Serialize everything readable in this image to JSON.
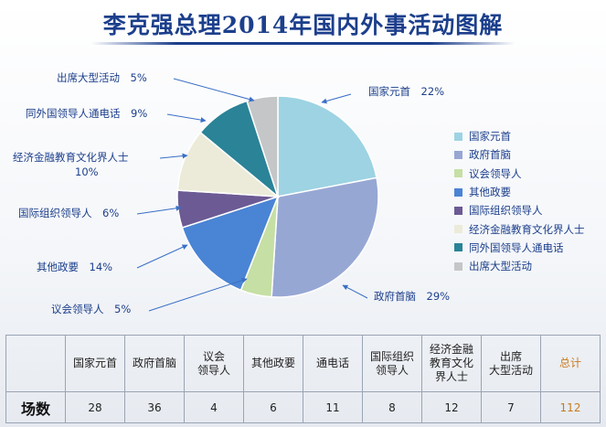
{
  "title": "李克强总理2014年国内外事活动图解",
  "colors": {
    "title": "#1c3f8c",
    "label_text": "#1c3f8c",
    "total_text": "#c97a1e"
  },
  "chart_data": {
    "type": "pie",
    "title": "李克强总理2014年国内外事活动图解",
    "legend_position": "right",
    "slices": [
      {
        "name": "国家元首",
        "value": 22,
        "label": "国家元首　22%",
        "color": "#9dd3e3"
      },
      {
        "name": "政府首脑",
        "value": 29,
        "label": "政府首脑　29%",
        "color": "#97a7d4"
      },
      {
        "name": "议会领导人",
        "value": 5,
        "label": "议会领导人　5%",
        "color": "#c6dfa4"
      },
      {
        "name": "其他政要",
        "value": 14,
        "label": "其他政要　14%",
        "color": "#4a84d4"
      },
      {
        "name": "国际组织领导人",
        "value": 6,
        "label": "国际组织领导人　6%",
        "color": "#6c5a94"
      },
      {
        "name": "经济金融教育文化界人士",
        "value": 10,
        "label": "经济金融教育文化界人士",
        "label2": "10%",
        "color": "#ecebd9"
      },
      {
        "name": "同外国领导人通电话",
        "value": 9,
        "label": "同外国领导人通电话　9%",
        "color": "#2a8397"
      },
      {
        "name": "出席大型活动",
        "value": 5,
        "label": "出席大型活动　5%",
        "color": "#c5c6c8"
      }
    ]
  },
  "legend": [
    "国家元首",
    "政府首脑",
    "议会领导人",
    "其他政要",
    "国际组织领导人",
    "经济金融教育文化界人士",
    "同外国领导人通电话",
    "出席大型活动"
  ],
  "table": {
    "row_label": "场数",
    "headers": [
      [
        "国家元首"
      ],
      [
        "政府首脑"
      ],
      [
        "议会",
        "领导人"
      ],
      [
        "其他政要"
      ],
      [
        "通电话"
      ],
      [
        "国际组织",
        "领导人"
      ],
      [
        "经济金融",
        "教育文化",
        "界人士"
      ],
      [
        "出席",
        "大型活动"
      ],
      [
        "总计"
      ]
    ],
    "values": [
      "28",
      "36",
      "4",
      "6",
      "11",
      "8",
      "12",
      "7",
      "112"
    ]
  }
}
